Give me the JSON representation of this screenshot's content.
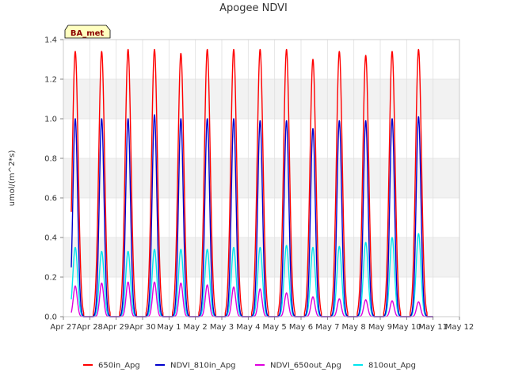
{
  "chart_data": {
    "type": "line",
    "title": "Apogee NDVI",
    "xlabel": "",
    "ylabel": "umol/(m^2*s)",
    "badge": "BA_met",
    "ylim": [
      0,
      1.4
    ],
    "yticks": [
      0.0,
      0.2,
      0.4,
      0.6,
      0.8,
      1.0,
      1.2,
      1.4
    ],
    "ytick_labels": [
      "0.0",
      "0.2",
      "0.4",
      "0.6",
      "0.8",
      "1.0",
      "1.2",
      "1.4"
    ],
    "xlim": [
      0,
      15
    ],
    "xticks": [
      0,
      1,
      2,
      3,
      4,
      5,
      6,
      7,
      8,
      9,
      10,
      11,
      12,
      13,
      14,
      15
    ],
    "xtick_labels": [
      "Apr 27",
      "Apr 28",
      "Apr 29",
      "Apr 30",
      "May 1",
      "May 2",
      "May 3",
      "May 4",
      "May 5",
      "May 6",
      "May 7",
      "May 8",
      "May 9",
      "May 10",
      "May 11",
      "May 12"
    ],
    "grid": true,
    "legend_position": "bottom",
    "daily_peak_day_offset": [
      0.45,
      1.45,
      2.45,
      3.45,
      4.45,
      5.45,
      6.45,
      7.45,
      8.45,
      9.45,
      10.45,
      11.45,
      12.45,
      13.45
    ],
    "series": [
      {
        "name": "650in_Apg",
        "color": "#ff0000",
        "peaks": [
          1.34,
          1.34,
          1.35,
          1.35,
          1.33,
          1.35,
          1.35,
          1.35,
          1.35,
          1.3,
          1.34,
          1.32,
          1.34,
          1.35
        ]
      },
      {
        "name": "NDVI_810in_Apg",
        "color": "#0000cc",
        "peaks": [
          1.0,
          1.0,
          1.0,
          1.02,
          1.0,
          1.0,
          1.0,
          0.99,
          0.99,
          0.95,
          0.99,
          0.99,
          1.0,
          1.01
        ]
      },
      {
        "name": "NDVI_650out_Apg",
        "color": "#dd00dd",
        "peaks": [
          0.155,
          0.17,
          0.175,
          0.175,
          0.17,
          0.16,
          0.15,
          0.14,
          0.12,
          0.1,
          0.09,
          0.085,
          0.08,
          0.075
        ]
      },
      {
        "name": "810out_Apg",
        "color": "#00e5ee",
        "peaks": [
          0.35,
          0.33,
          0.33,
          0.34,
          0.34,
          0.34,
          0.35,
          0.35,
          0.36,
          0.35,
          0.355,
          0.375,
          0.4,
          0.42
        ]
      }
    ]
  }
}
